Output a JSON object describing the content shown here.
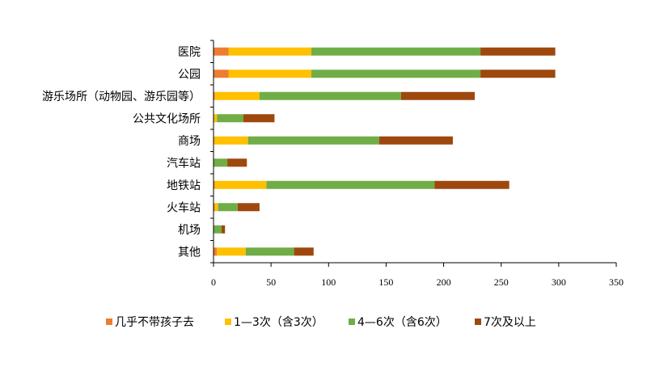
{
  "chart_data": {
    "type": "bar",
    "orientation": "horizontal",
    "stacked": true,
    "categories": [
      "医院",
      "公园",
      "游乐场所（动物园、游乐园等）",
      "公共文化场所",
      "商场",
      "汽车站",
      "地铁站",
      "火车站",
      "机场",
      "其他"
    ],
    "series": [
      {
        "name": "几乎不带孩子去",
        "color": "#ed7d31",
        "values": [
          13,
          13,
          1,
          0,
          0,
          0,
          1,
          1,
          0,
          3
        ]
      },
      {
        "name": "1—3次（含3次）",
        "color": "#ffc000",
        "values": [
          72,
          72,
          39,
          3,
          30,
          0,
          45,
          3,
          0,
          25
        ]
      },
      {
        "name": "4—6次（含6次）",
        "color": "#70ad47",
        "values": [
          147,
          147,
          123,
          23,
          114,
          12,
          146,
          17,
          7,
          42
        ]
      },
      {
        "name": "7次及以上",
        "color": "#9e480e",
        "values": [
          65,
          65,
          64,
          27,
          64,
          17,
          65,
          19,
          3,
          17
        ]
      }
    ],
    "xlim": [
      0,
      350
    ],
    "xticks": [
      0,
      50,
      100,
      150,
      200,
      250,
      300,
      350
    ],
    "title": "",
    "xlabel": "",
    "ylabel": "",
    "grid": false,
    "legend_position": "bottom"
  }
}
